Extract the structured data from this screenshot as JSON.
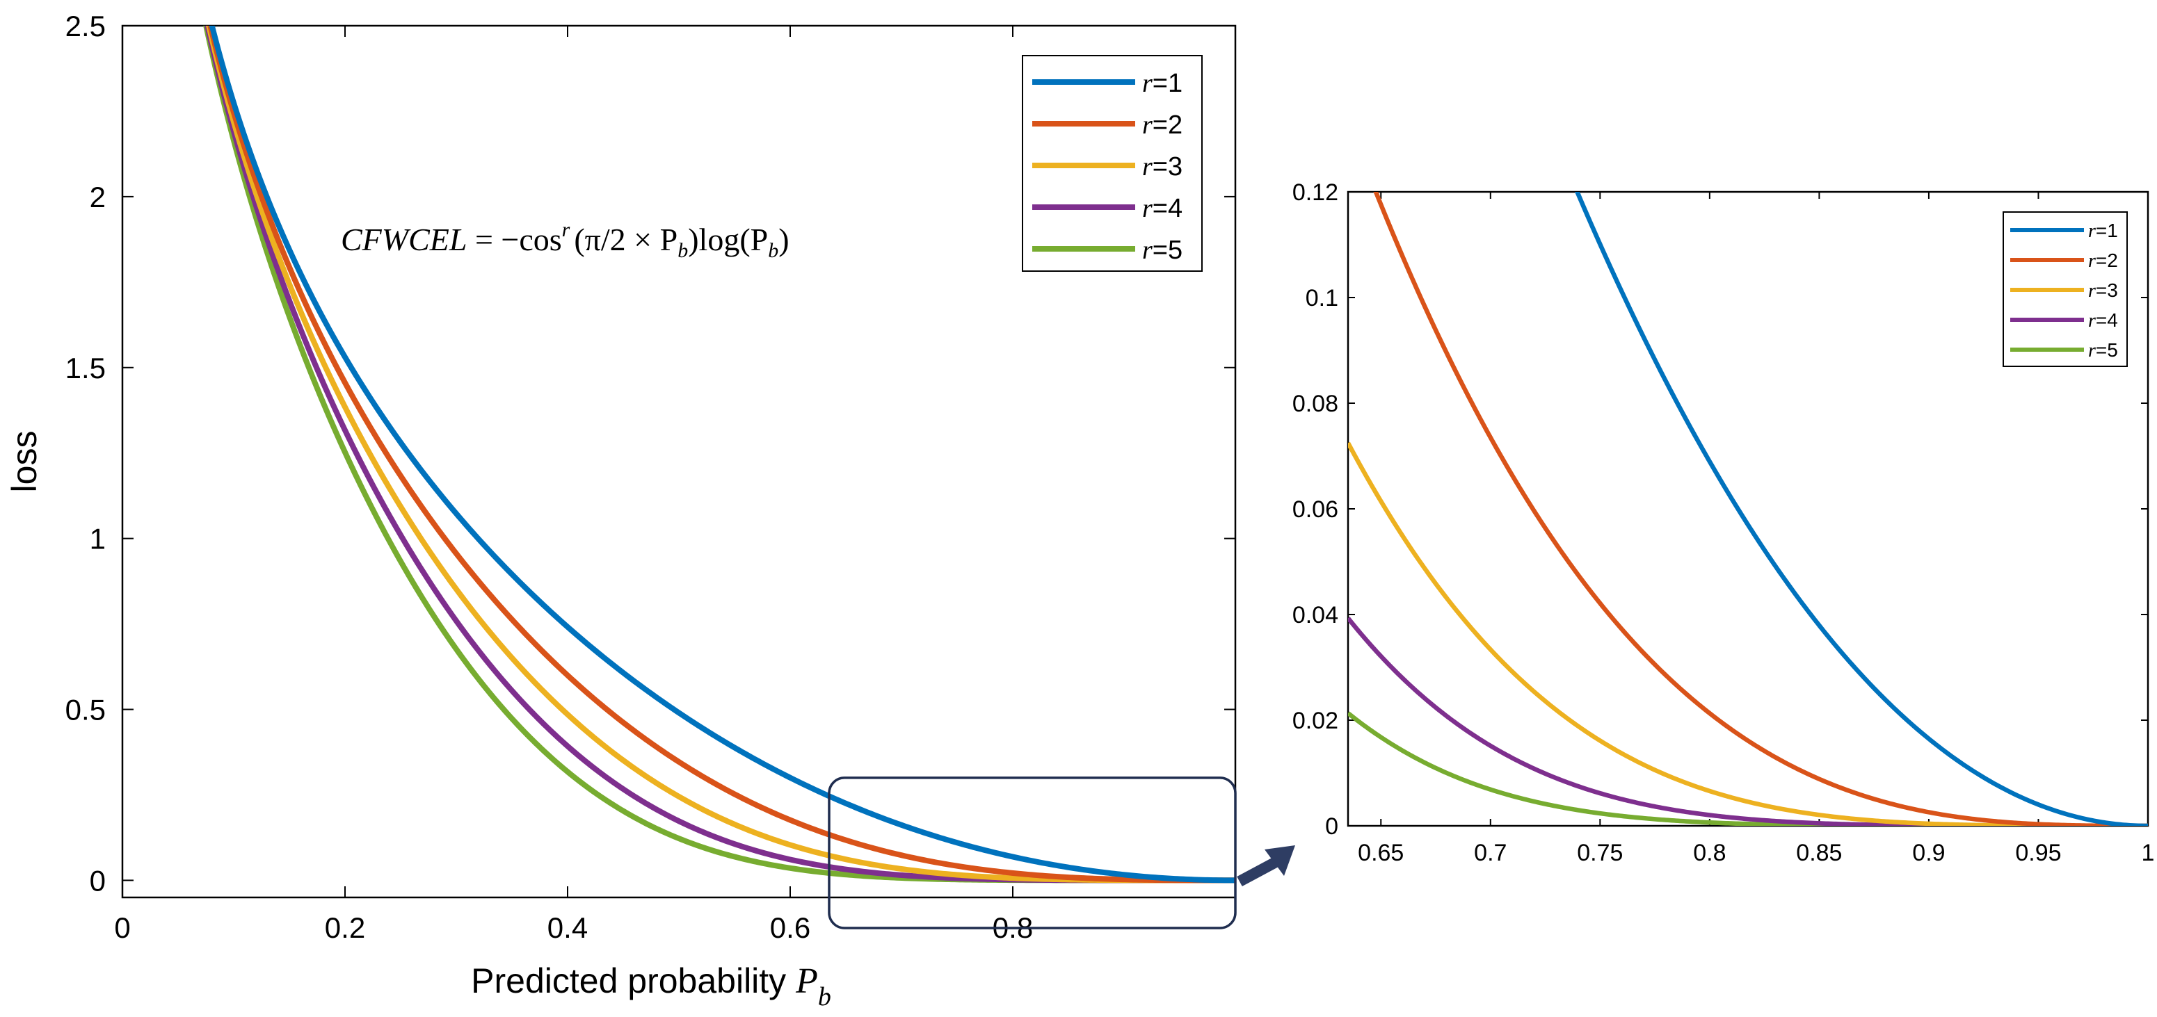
{
  "colors": {
    "series": [
      "#0072BD",
      "#D95319",
      "#EDB120",
      "#7E2F8E",
      "#77AC30"
    ],
    "zoom_box": "#1F2D4F",
    "arrow": "#2E3D63"
  },
  "chart_data": [
    {
      "type": "line",
      "name": "main",
      "formula": "CFWCEL = −cos^r (π/2 × P_b) log(P_b)",
      "formula_parts": {
        "lhs": "CFWCEL",
        "eq": " = −cos",
        "sup": "r",
        "arg": "(π/2 × P",
        "argsub": "b",
        "mid": ")log(P",
        "logsub": "b",
        "end": ")"
      },
      "xlabel": "Predicted probability ",
      "xlabel_var": "P",
      "xlabel_sub": "b",
      "ylabel": "loss",
      "xlim": [
        0,
        1
      ],
      "ylim": [
        -0.05,
        2.5
      ],
      "xticks": [
        0,
        0.2,
        0.4,
        0.6,
        0.8
      ],
      "xtick_labels": [
        "0",
        "0.2",
        "0.4",
        "0.6",
        "0.8"
      ],
      "yticks": [
        0,
        0.5,
        1,
        1.5,
        2,
        2.5
      ],
      "ytick_labels": [
        "0",
        "0.5",
        "1",
        "1.5",
        "2",
        "2.5"
      ],
      "x_start": 0.01,
      "x_end": 1.0,
      "legend_position": "top-right",
      "series": [
        {
          "name": "r=1",
          "r": 1,
          "var": "r",
          "eq": "=1"
        },
        {
          "name": "r=2",
          "r": 2,
          "var": "r",
          "eq": "=2"
        },
        {
          "name": "r=3",
          "r": 3,
          "var": "r",
          "eq": "=3"
        },
        {
          "name": "r=4",
          "r": 4,
          "var": "r",
          "eq": "=4"
        },
        {
          "name": "r=5",
          "r": 5,
          "var": "r",
          "eq": "=5"
        }
      ],
      "zoom_region": {
        "x": [
          0.635,
          1.0
        ],
        "y": [
          -0.05,
          0.3
        ]
      }
    },
    {
      "type": "line",
      "name": "zoom",
      "xlim": [
        0.635,
        1.0
      ],
      "ylim": [
        0,
        0.12
      ],
      "xticks": [
        0.65,
        0.7,
        0.75,
        0.8,
        0.85,
        0.9,
        0.95,
        1
      ],
      "xtick_labels": [
        "0.65",
        "0.7",
        "0.75",
        "0.8",
        "0.85",
        "0.9",
        "0.95",
        "1"
      ],
      "yticks": [
        0,
        0.02,
        0.04,
        0.06,
        0.08,
        0.1,
        0.12
      ],
      "ytick_labels": [
        "0",
        "0.02",
        "0.04",
        "0.06",
        "0.08",
        "0.1",
        "0.12"
      ],
      "legend_position": "top-right",
      "series": [
        {
          "name": "r=1",
          "r": 1,
          "var": "r",
          "eq": "=1"
        },
        {
          "name": "r=2",
          "r": 2,
          "var": "r",
          "eq": "=2"
        },
        {
          "name": "r=3",
          "r": 3,
          "var": "r",
          "eq": "=3"
        },
        {
          "name": "r=4",
          "r": 4,
          "var": "r",
          "eq": "=4"
        },
        {
          "name": "r=5",
          "r": 5,
          "var": "r",
          "eq": "=5"
        }
      ]
    }
  ]
}
